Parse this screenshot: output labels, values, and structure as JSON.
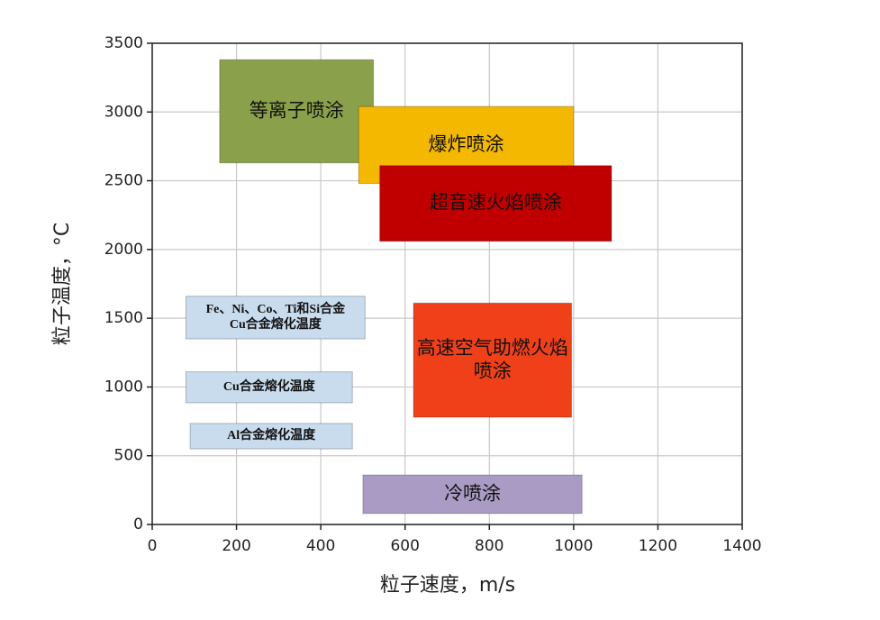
{
  "chart_data": {
    "type": "range",
    "xlabel": "粒子速度，m/s",
    "ylabel": "粒子温度，°C",
    "xlim": [
      0,
      1400
    ],
    "xticks": [
      0,
      200,
      400,
      600,
      800,
      1000,
      1200,
      1400
    ],
    "ylim": [
      0,
      3500
    ],
    "yticks": [
      0,
      500,
      1000,
      1500,
      2000,
      2500,
      3000,
      3500
    ],
    "grid": true,
    "series": [
      {
        "label": [
          "等离子喷涂"
        ],
        "color": "#8aa04a",
        "x": [
          160,
          525
        ],
        "y": [
          2630,
          3380
        ]
      },
      {
        "label": [
          "爆炸喷涂"
        ],
        "color": "#f5b800",
        "x": [
          490,
          1000
        ],
        "y": [
          2480,
          3040
        ]
      },
      {
        "label": [
          "超音速火焰喷涂"
        ],
        "color": "#c00000",
        "x": [
          540,
          1090
        ],
        "y": [
          2060,
          2610
        ]
      },
      {
        "label": [
          "Fe、Ni、Co、Ti和Si合金",
          "Cu合金熔化温度"
        ],
        "color": "#c9dced",
        "x": [
          80,
          505
        ],
        "y": [
          1350,
          1660
        ]
      },
      {
        "label": [
          "Cu合金熔化温度"
        ],
        "color": "#c9dced",
        "x": [
          80,
          475
        ],
        "y": [
          885,
          1110
        ]
      },
      {
        "label": [
          "Al合金熔化温度"
        ],
        "color": "#c9dced",
        "x": [
          90,
          475
        ],
        "y": [
          550,
          735
        ]
      },
      {
        "label": [
          "高速空气助燃火焰",
          "喷涂"
        ],
        "color": "#f0401a",
        "x": [
          620,
          995
        ],
        "y": [
          780,
          1610
        ]
      },
      {
        "label": [
          "冷喷涂"
        ],
        "color": "#a99bc4",
        "x": [
          500,
          1020
        ],
        "y": [
          80,
          360
        ]
      }
    ]
  }
}
